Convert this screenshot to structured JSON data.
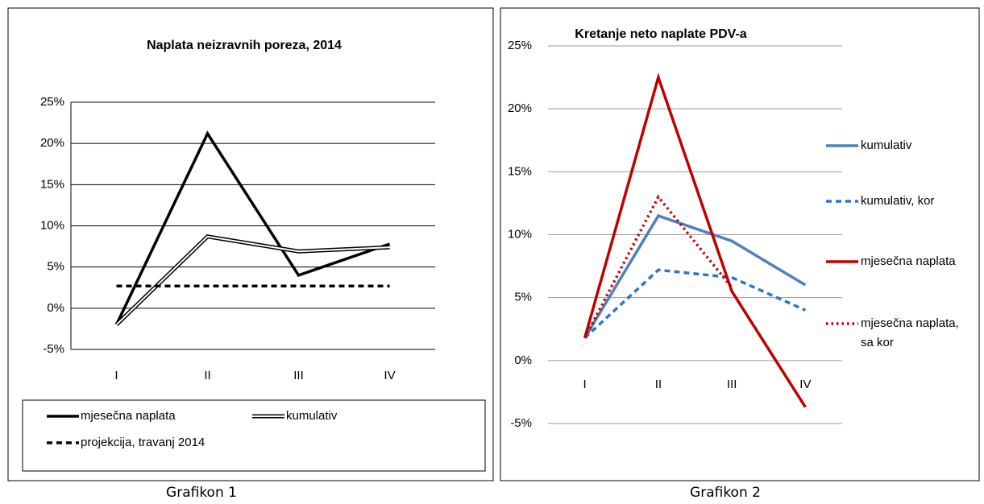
{
  "chart_data": [
    {
      "type": "line",
      "title": "Naplata neizravnih poreza,  2014",
      "caption": "Grafikon 1",
      "categories": [
        "I",
        "II",
        "III",
        "IV"
      ],
      "series": [
        {
          "name": "mjesečna naplata",
          "color": "#000000",
          "style": "solid",
          "values": [
            -2,
            21.2,
            4,
            7.8
          ]
        },
        {
          "name": "kumulativ",
          "color": "#000000",
          "style": "double",
          "values": [
            -2,
            8.7,
            6.9,
            7.4
          ]
        },
        {
          "name": "projekcija, travanj 2014",
          "color": "#000000",
          "style": "dashed",
          "values": [
            2.7,
            2.7,
            2.7,
            2.7
          ]
        }
      ],
      "ylim": [
        -5,
        25
      ],
      "yticks": [
        {
          "value": -5,
          "label": "-5%"
        },
        {
          "value": 0,
          "label": "0%"
        },
        {
          "value": 5,
          "label": "5%"
        },
        {
          "value": 10,
          "label": "10%"
        },
        {
          "value": 15,
          "label": "15%"
        },
        {
          "value": 20,
          "label": "20%"
        },
        {
          "value": 25,
          "label": "25%"
        }
      ],
      "grid": true,
      "legend": "bottom"
    },
    {
      "type": "line",
      "title": "Kretanje neto naplate PDV-a",
      "caption": "Grafikon 2",
      "categories": [
        "I",
        "II",
        "III",
        "IV"
      ],
      "series": [
        {
          "name": "kumulativ",
          "color": "#4f81bd",
          "style": "solid",
          "values": [
            1.8,
            11.5,
            9.5,
            6
          ]
        },
        {
          "name": "kumulativ, kor",
          "color": "#2e75c8",
          "style": "dashed",
          "values": [
            1.8,
            7.2,
            6.6,
            4
          ]
        },
        {
          "name": "mjesečna naplata",
          "color": "#c00000",
          "style": "solid",
          "values": [
            1.8,
            22.5,
            5.5,
            -3.7
          ]
        },
        {
          "name": "mjesečna naplata, sa kor",
          "color": "#c00000",
          "style": "dotted",
          "values": [
            1.8,
            13,
            5.8,
            null
          ]
        }
      ],
      "ylim": [
        -5,
        25
      ],
      "yticks": [
        {
          "value": -5,
          "label": "-5%"
        },
        {
          "value": 0,
          "label": "0%"
        },
        {
          "value": 5,
          "label": "5%"
        },
        {
          "value": 10,
          "label": "10%"
        },
        {
          "value": 15,
          "label": "15%"
        },
        {
          "value": 20,
          "label": "20%"
        },
        {
          "value": 25,
          "label": "25%"
        }
      ],
      "grid": true,
      "legend": "right"
    }
  ]
}
